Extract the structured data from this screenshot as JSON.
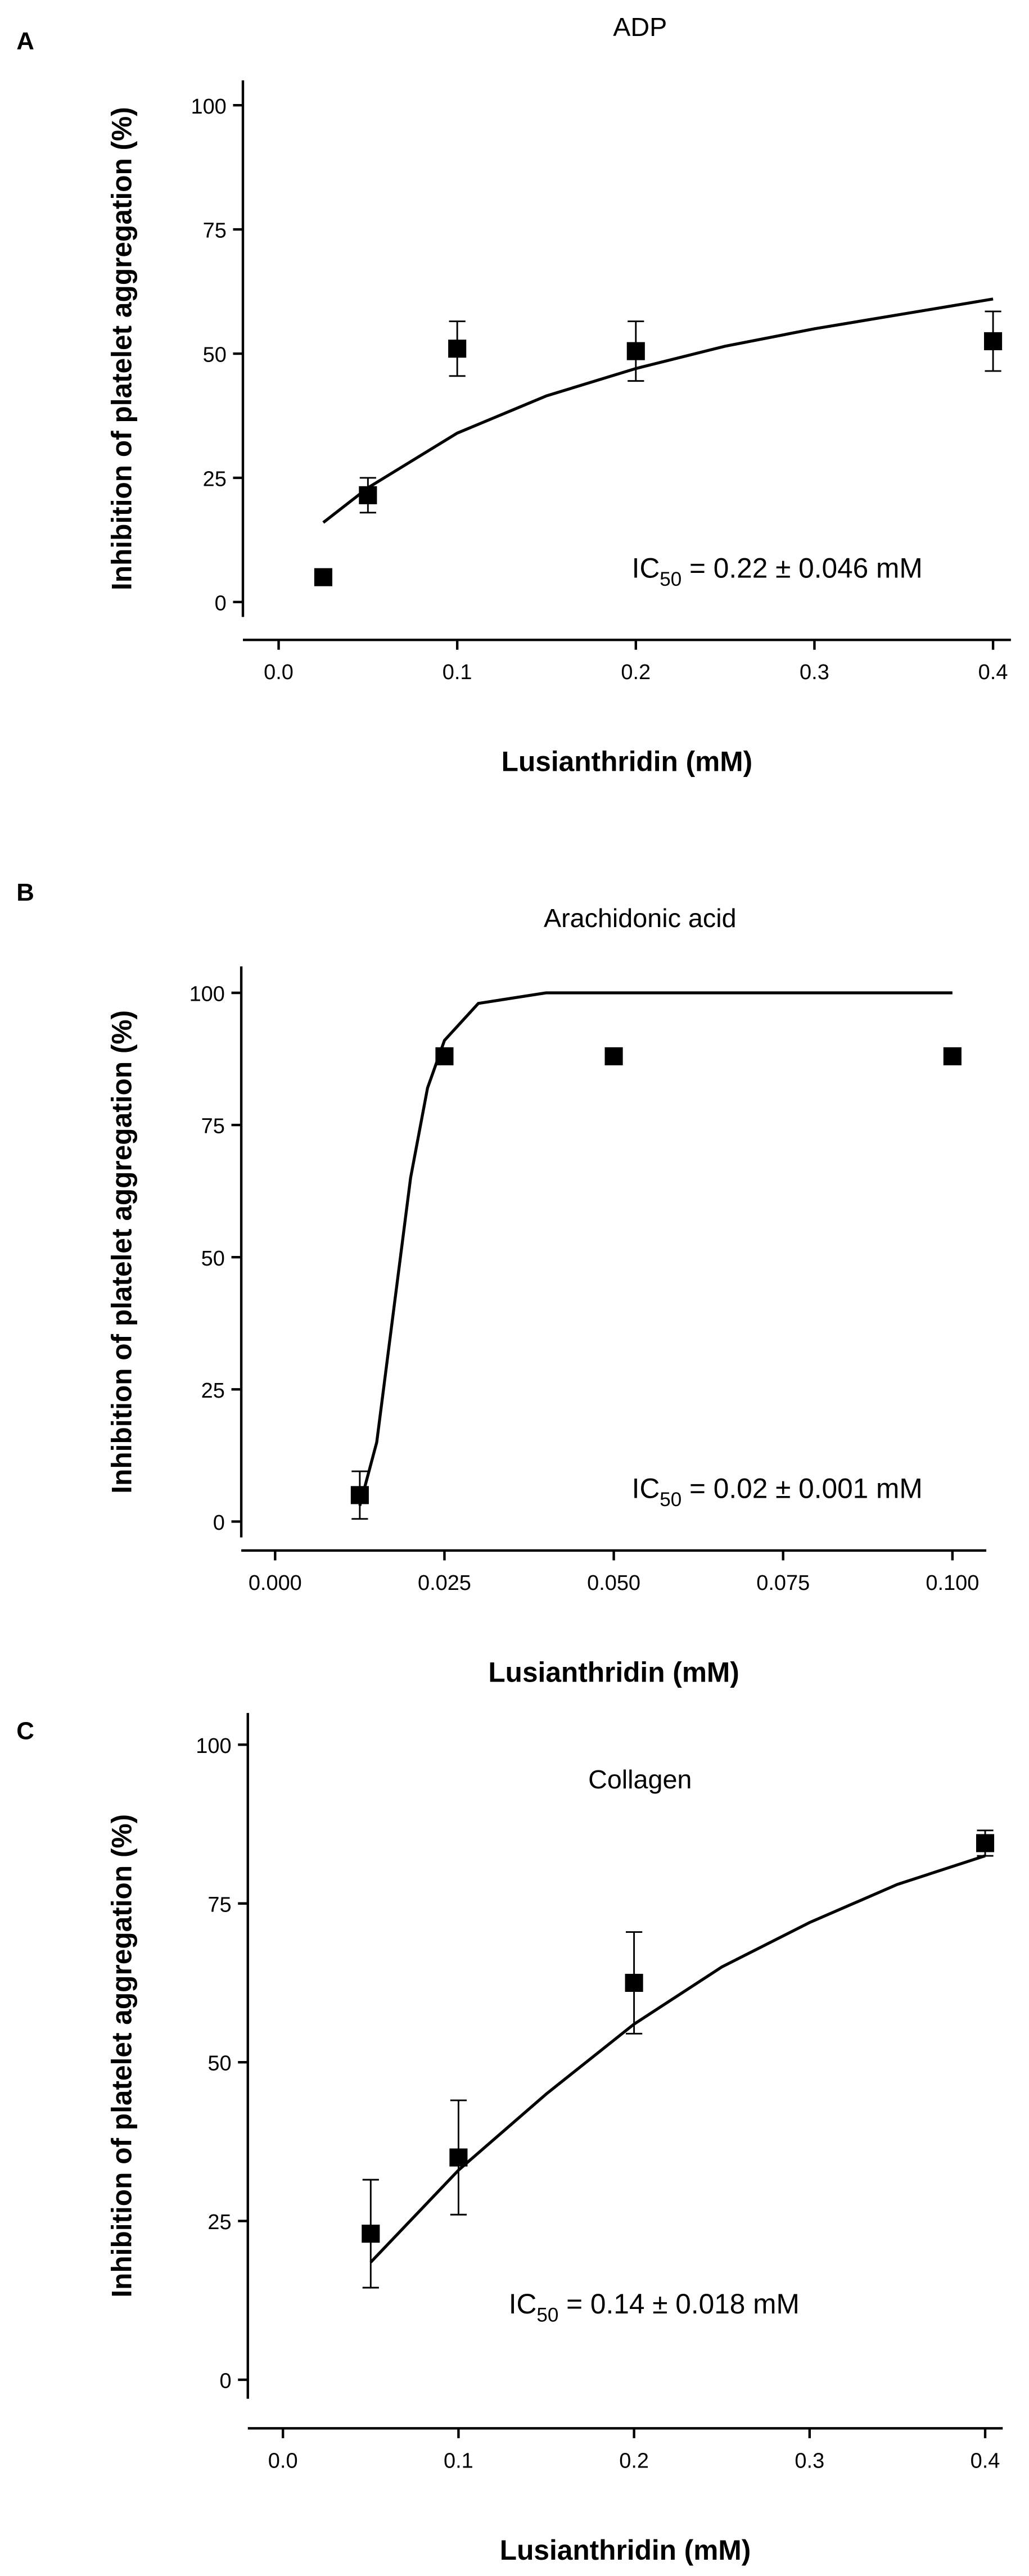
{
  "chart_data": [
    {
      "type": "scatter",
      "panel_label": "A",
      "title": "ADP",
      "x_label": "Lusianthridin (mM)",
      "y_label": "Inhibition of platelet aggregation (%)",
      "x": [
        0.025,
        0.05,
        0.1,
        0.2,
        0.4
      ],
      "values": [
        5,
        21.5,
        51,
        50.5,
        52.5
      ],
      "errors": [
        null,
        3.5,
        5.5,
        6,
        6
      ],
      "color": "#000000",
      "curve": {
        "x": [
          0.025,
          0.05,
          0.1,
          0.15,
          0.2,
          0.25,
          0.3,
          0.35,
          0.4
        ],
        "values": [
          16,
          23,
          34,
          41.5,
          47,
          51.5,
          55,
          58,
          61
        ]
      },
      "annotation": {
        "prefix": "IC",
        "subscript": "50",
        "text": " = 0.22 ± 0.046 mM"
      },
      "xlim": [
        -0.02,
        0.41
      ],
      "ylim": [
        -3,
        105
      ],
      "xticks": [
        {
          "value": 0,
          "label": "0.0"
        },
        0.1,
        0.2,
        0.3,
        0.4
      ],
      "yticks": [
        0,
        25,
        50,
        75,
        100
      ]
    },
    {
      "type": "scatter",
      "panel_label": "B",
      "title": "Arachidonic acid",
      "x_label": "Lusianthridin (mM)",
      "y_label": "Inhibition of platelet aggregation (%)",
      "x": [
        0.0125,
        0.025,
        0.05,
        0.1
      ],
      "values": [
        5,
        88,
        88,
        88
      ],
      "errors": [
        4.5,
        null,
        null,
        null
      ],
      "color": "#000000",
      "curve": {
        "x": [
          0.0125,
          0.015,
          0.0175,
          0.02,
          0.0225,
          0.025,
          0.03,
          0.04,
          0.05,
          0.1
        ],
        "values": [
          3,
          15,
          40,
          65,
          82,
          91,
          98,
          100,
          100,
          100
        ]
      },
      "annotation": {
        "prefix": "IC",
        "subscript": "50",
        "text": " = 0.02 ± 0.001 mM"
      },
      "xlim": [
        -0.005,
        0.105
      ],
      "ylim": [
        -3,
        105
      ],
      "xticks": [
        {
          "value": 0,
          "label": "0.000"
        },
        {
          "value": 0.025,
          "label": "0.025"
        },
        {
          "value": 0.05,
          "label": "0.050"
        },
        {
          "value": 0.075,
          "label": "0.075"
        },
        {
          "value": 0.1,
          "label": "0.100"
        }
      ],
      "yticks": [
        0,
        25,
        50,
        75,
        100
      ]
    },
    {
      "type": "scatter",
      "panel_label": "C",
      "title": "Collagen",
      "x_label": "Lusianthridin (mM)",
      "y_label": "Inhibition of platelet aggregation (%)",
      "x": [
        0.05,
        0.1,
        0.2,
        0.4
      ],
      "values": [
        23,
        35,
        62.5,
        84.5
      ],
      "errors": [
        8.5,
        9,
        8,
        2
      ],
      "color": "#000000",
      "curve": {
        "x": [
          0.05,
          0.1,
          0.15,
          0.2,
          0.25,
          0.3,
          0.35,
          0.4
        ],
        "values": [
          18.5,
          33,
          45,
          56,
          65,
          72,
          78,
          82.5
        ]
      },
      "annotation": {
        "prefix": "IC",
        "subscript": "50",
        "text": " = 0.14 ± 0.018 mM"
      },
      "xlim": [
        -0.02,
        0.41
      ],
      "ylim": [
        -3,
        105
      ],
      "xticks": [
        {
          "value": 0,
          "label": "0.0"
        },
        0.1,
        0.2,
        0.3,
        0.4
      ],
      "yticks": [
        0,
        25,
        50,
        75,
        100
      ]
    }
  ]
}
